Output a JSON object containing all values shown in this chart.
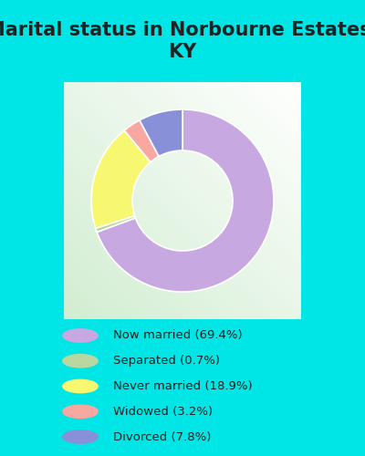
{
  "title": "Marital status in Norbourne Estates,\nKY",
  "categories": [
    "Now married",
    "Separated",
    "Never married",
    "Widowed",
    "Divorced"
  ],
  "values": [
    69.4,
    0.7,
    18.9,
    3.2,
    7.8
  ],
  "colors": [
    "#c8a8e0",
    "#b8d8a0",
    "#f8f870",
    "#f8a8a0",
    "#8890d8"
  ],
  "legend_labels": [
    "Now married (69.4%)",
    "Separated (0.7%)",
    "Never married (18.9%)",
    "Widowed (3.2%)",
    "Divorced (7.8%)"
  ],
  "bg_outer": "#00e5e5",
  "title_fontsize": 15,
  "donut_width": 0.45,
  "title_color": "#222222"
}
